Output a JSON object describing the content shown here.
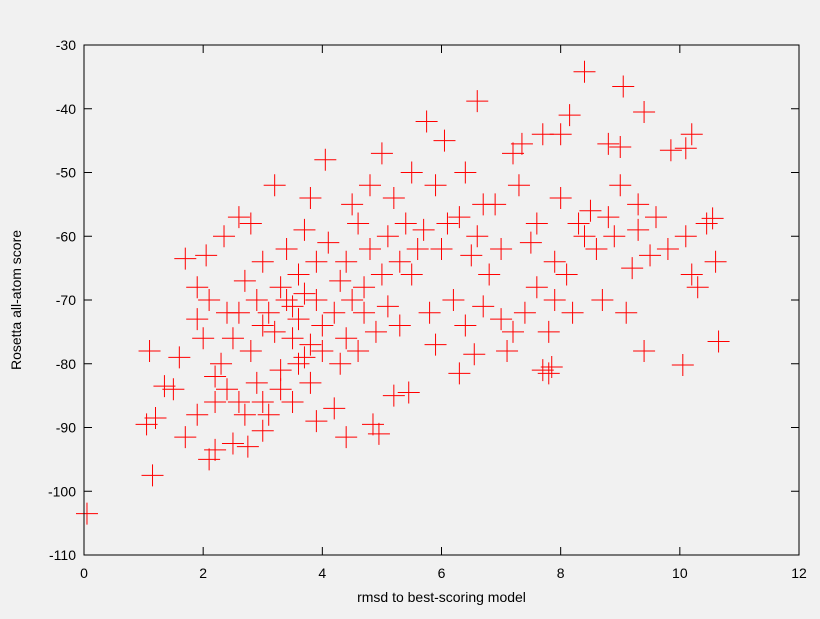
{
  "chart_data": {
    "type": "scatter",
    "title": "",
    "xlabel": "rmsd to best-scoring model",
    "ylabel": "Rosetta all-atom score",
    "xlim": [
      0,
      12
    ],
    "ylim": [
      -110,
      -30
    ],
    "xticks": [
      0,
      2,
      4,
      6,
      8,
      10,
      12
    ],
    "yticks": [
      -110,
      -100,
      -90,
      -80,
      -70,
      -60,
      -50,
      -40,
      -30
    ],
    "grid": false,
    "legend": "none",
    "marker": "plus",
    "series": [
      {
        "color": "#ff0000",
        "points": [
          [
            0.05,
            -103.5
          ],
          [
            1.15,
            -97.5
          ],
          [
            1.05,
            -89.5
          ],
          [
            1.2,
            -88.5
          ],
          [
            1.1,
            -78
          ],
          [
            1.35,
            -83.5
          ],
          [
            1.5,
            -84
          ],
          [
            1.6,
            -79
          ],
          [
            1.7,
            -91.5
          ],
          [
            1.9,
            -88
          ],
          [
            2.1,
            -95
          ],
          [
            2.2,
            -93.5
          ],
          [
            2.5,
            -92.5
          ],
          [
            2.75,
            -93
          ],
          [
            3.0,
            -90.5
          ],
          [
            3.1,
            -88
          ],
          [
            1.7,
            -63.5
          ],
          [
            1.9,
            -68
          ],
          [
            2.05,
            -63
          ],
          [
            2.35,
            -60
          ],
          [
            2.6,
            -57
          ],
          [
            4.05,
            -48
          ],
          [
            5.0,
            -47
          ],
          [
            5.75,
            -42
          ],
          [
            6.05,
            -45
          ],
          [
            6.6,
            -38.8
          ],
          [
            7.2,
            -47
          ],
          [
            7.35,
            -45.5
          ],
          [
            7.7,
            -44
          ],
          [
            8.0,
            -44
          ],
          [
            8.15,
            -41
          ],
          [
            8.4,
            -34.2
          ],
          [
            8.8,
            -45.5
          ],
          [
            9.0,
            -46
          ],
          [
            9.05,
            -36.5
          ],
          [
            9.4,
            -40.5
          ],
          [
            9.85,
            -46.5
          ],
          [
            10.1,
            -46.2
          ],
          [
            10.2,
            -44
          ],
          [
            10.45,
            -58
          ],
          [
            10.55,
            -57.2
          ],
          [
            10.6,
            -64
          ],
          [
            10.65,
            -76.5
          ],
          [
            10.05,
            -80.2
          ],
          [
            9.4,
            -78
          ],
          [
            7.7,
            -81
          ],
          [
            7.85,
            -80.5
          ],
          [
            7.8,
            -81.5
          ],
          [
            6.55,
            -78.5
          ],
          [
            6.3,
            -81.5
          ],
          [
            5.45,
            -84.5
          ],
          [
            5.2,
            -85
          ],
          [
            4.95,
            -91
          ],
          [
            4.4,
            -91.5
          ],
          [
            4.85,
            -89.5
          ],
          [
            3.9,
            -89
          ],
          [
            4.2,
            -87
          ],
          [
            9.2,
            -65
          ],
          [
            9.5,
            -63
          ],
          [
            9.8,
            -62
          ],
          [
            10.2,
            -66
          ],
          [
            10.3,
            -68
          ],
          [
            10.1,
            -60
          ],
          [
            9.6,
            -57
          ],
          [
            8.9,
            -60
          ],
          [
            8.6,
            -62
          ],
          [
            8.3,
            -58
          ],
          [
            8.1,
            -66
          ],
          [
            7.9,
            -70
          ],
          [
            7.6,
            -68
          ],
          [
            7.4,
            -72
          ],
          [
            7.2,
            -75
          ],
          [
            7.0,
            -73
          ],
          [
            6.8,
            -66
          ],
          [
            6.5,
            -63
          ],
          [
            6.9,
            -55
          ],
          [
            7.3,
            -52
          ],
          [
            7.6,
            -58
          ],
          [
            8.0,
            -54
          ],
          [
            8.5,
            -56
          ],
          [
            9.0,
            -52
          ],
          [
            9.3,
            -55
          ],
          [
            8.7,
            -70
          ],
          [
            9.1,
            -72
          ],
          [
            6.2,
            -70
          ],
          [
            6.0,
            -62
          ],
          [
            5.7,
            -59
          ],
          [
            5.5,
            -66
          ],
          [
            5.8,
            -72
          ],
          [
            5.3,
            -74
          ],
          [
            5.9,
            -52
          ],
          [
            6.4,
            -50
          ],
          [
            6.7,
            -55
          ],
          [
            5.2,
            -54
          ],
          [
            4.8,
            -52
          ],
          [
            4.5,
            -55
          ],
          [
            5.5,
            -50
          ],
          [
            3.2,
            -52
          ],
          [
            3.8,
            -54
          ],
          [
            2.8,
            -58
          ],
          [
            2.4,
            -72
          ],
          [
            2.3,
            -80
          ],
          [
            2.2,
            -86
          ],
          [
            2.6,
            -86
          ],
          [
            2.9,
            -83
          ],
          [
            3.3,
            -81
          ],
          [
            3.5,
            -86
          ],
          [
            3.7,
            -79
          ],
          [
            3.8,
            -83
          ],
          [
            4.3,
            -80
          ],
          [
            4.6,
            -78
          ],
          [
            4.9,
            -75
          ],
          [
            5.1,
            -71
          ],
          [
            4.7,
            -68
          ],
          [
            4.4,
            -64
          ],
          [
            4.1,
            -61
          ],
          [
            3.7,
            -59
          ],
          [
            3.4,
            -62
          ],
          [
            3.0,
            -64
          ],
          [
            2.7,
            -67
          ],
          [
            2.5,
            -76
          ],
          [
            2.8,
            -78
          ],
          [
            3.1,
            -72
          ],
          [
            3.3,
            -68
          ],
          [
            3.6,
            -66
          ],
          [
            3.9,
            -70
          ],
          [
            4.0,
            -74
          ],
          [
            3.5,
            -76
          ],
          [
            3.2,
            -75
          ],
          [
            2.9,
            -70
          ],
          [
            3.6,
            -73
          ],
          [
            3.8,
            -77
          ],
          [
            4.2,
            -72
          ],
          [
            4.5,
            -70
          ],
          [
            4.8,
            -62
          ],
          [
            5.1,
            -60
          ],
          [
            5.4,
            -58
          ],
          [
            3.4,
            -70
          ],
          [
            3.0,
            -74
          ],
          [
            2.6,
            -72
          ],
          [
            3.7,
            -69
          ],
          [
            3.5,
            -71
          ],
          [
            3.9,
            -64
          ],
          [
            4.3,
            -67
          ],
          [
            4.6,
            -58
          ],
          [
            2.1,
            -70
          ],
          [
            1.9,
            -73
          ],
          [
            2.0,
            -76
          ],
          [
            2.2,
            -82
          ],
          [
            2.4,
            -84
          ],
          [
            2.7,
            -88
          ],
          [
            3.0,
            -86
          ],
          [
            3.3,
            -84
          ],
          [
            3.6,
            -80
          ],
          [
            4.0,
            -78
          ],
          [
            4.4,
            -76
          ],
          [
            4.7,
            -72
          ],
          [
            5.0,
            -66
          ],
          [
            5.3,
            -64
          ],
          [
            5.6,
            -62
          ],
          [
            6.1,
            -58
          ],
          [
            6.3,
            -57
          ],
          [
            6.6,
            -60
          ],
          [
            7.0,
            -62
          ],
          [
            7.5,
            -61
          ],
          [
            7.9,
            -64
          ],
          [
            8.4,
            -60
          ],
          [
            8.8,
            -57
          ],
          [
            9.3,
            -59
          ],
          [
            8.2,
            -72
          ],
          [
            7.8,
            -75
          ],
          [
            7.1,
            -78
          ],
          [
            6.7,
            -71
          ],
          [
            6.4,
            -74
          ],
          [
            5.9,
            -77
          ]
        ]
      }
    ]
  }
}
